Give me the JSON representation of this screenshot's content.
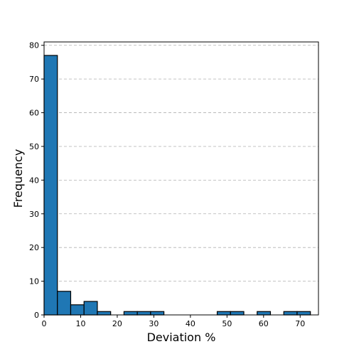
{
  "chart_data": {
    "type": "bar",
    "xlabel": "Deviation %",
    "ylabel": "Frequency",
    "xlim": [
      0,
      75
    ],
    "ylim": [
      0,
      81
    ],
    "x_ticks": [
      0,
      10,
      20,
      30,
      40,
      50,
      60,
      70
    ],
    "y_ticks": [
      0,
      10,
      20,
      30,
      40,
      50,
      60,
      70,
      80
    ],
    "grid": "y-dashed",
    "colors": {
      "bar_fill": "#1f77b4",
      "bar_edge": "#000000",
      "grid": "#b0b0b0"
    },
    "bin_width": 3.64,
    "bins": [
      {
        "x0": 0.0,
        "x1": 3.64,
        "value": 77
      },
      {
        "x0": 3.64,
        "x1": 7.28,
        "value": 7
      },
      {
        "x0": 7.28,
        "x1": 10.92,
        "value": 3
      },
      {
        "x0": 10.92,
        "x1": 14.56,
        "value": 4
      },
      {
        "x0": 14.56,
        "x1": 18.2,
        "value": 1
      },
      {
        "x0": 18.2,
        "x1": 21.84,
        "value": 0
      },
      {
        "x0": 21.84,
        "x1": 25.48,
        "value": 1
      },
      {
        "x0": 25.48,
        "x1": 29.12,
        "value": 1
      },
      {
        "x0": 29.12,
        "x1": 32.76,
        "value": 1
      },
      {
        "x0": 32.76,
        "x1": 36.4,
        "value": 0
      },
      {
        "x0": 36.4,
        "x1": 40.04,
        "value": 0
      },
      {
        "x0": 40.04,
        "x1": 43.68,
        "value": 0
      },
      {
        "x0": 43.68,
        "x1": 47.32,
        "value": 0
      },
      {
        "x0": 47.32,
        "x1": 50.96,
        "value": 1
      },
      {
        "x0": 50.96,
        "x1": 54.6,
        "value": 1
      },
      {
        "x0": 54.6,
        "x1": 58.24,
        "value": 0
      },
      {
        "x0": 58.24,
        "x1": 61.88,
        "value": 1
      },
      {
        "x0": 61.88,
        "x1": 65.52,
        "value": 0
      },
      {
        "x0": 65.52,
        "x1": 69.16,
        "value": 1
      },
      {
        "x0": 69.16,
        "x1": 72.8,
        "value": 1
      }
    ]
  }
}
